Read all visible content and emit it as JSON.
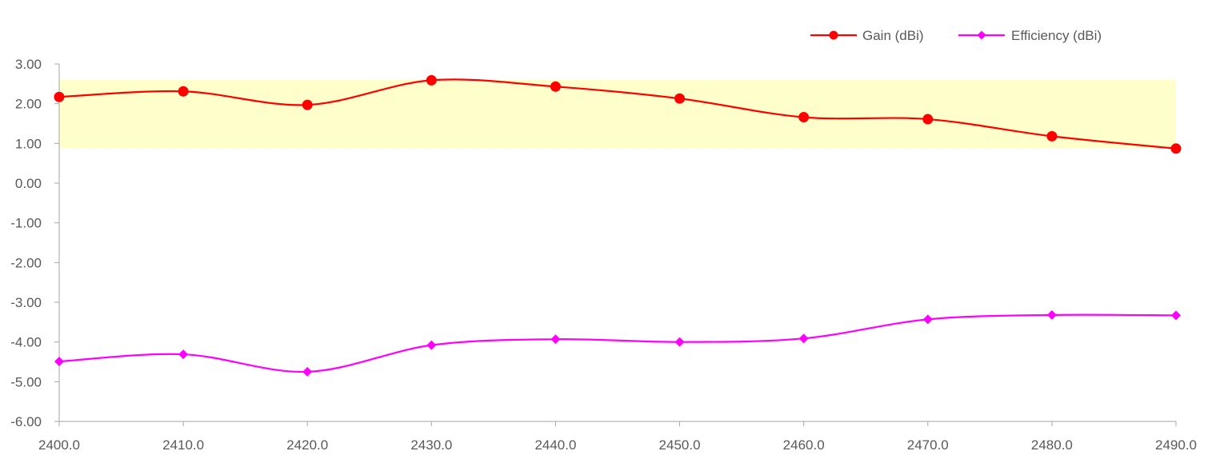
{
  "chart_data": {
    "type": "line",
    "title": "",
    "xlabel": "",
    "ylabel": "",
    "x": [
      2400.0,
      2410.0,
      2420.0,
      2430.0,
      2440.0,
      2450.0,
      2460.0,
      2470.0,
      2480.0,
      2490.0
    ],
    "x_tick_labels": [
      "2400.0",
      "2410.0",
      "2420.0",
      "2430.0",
      "2440.0",
      "2450.0",
      "2460.0",
      "2470.0",
      "2480.0",
      "2490.0"
    ],
    "y_tick_labels": [
      "3.00",
      "2.00",
      "1.00",
      "0.00",
      "-1.00",
      "-2.00",
      "-3.00",
      "-4.00",
      "-5.00",
      "-6.00"
    ],
    "xlim": [
      2400,
      2490
    ],
    "ylim": [
      -6,
      3
    ],
    "grid": false,
    "smooth": true,
    "legend_position": "top-right",
    "highlight_band": {
      "y_from": 0.87,
      "y_to": 2.6,
      "color": "#FFFFCC"
    },
    "series": [
      {
        "name": "Gain (dBi)",
        "color": "#FF0000",
        "marker": "circle",
        "values": [
          2.17,
          2.31,
          1.97,
          2.59,
          2.43,
          2.13,
          1.66,
          1.61,
          1.18,
          0.87
        ]
      },
      {
        "name": "Efficiency (dBi)",
        "color": "#FF00FF",
        "marker": "diamond",
        "values": [
          -4.49,
          -4.31,
          -4.75,
          -4.08,
          -3.93,
          -4.0,
          -3.91,
          -3.43,
          -3.32,
          -3.33
        ]
      }
    ]
  }
}
